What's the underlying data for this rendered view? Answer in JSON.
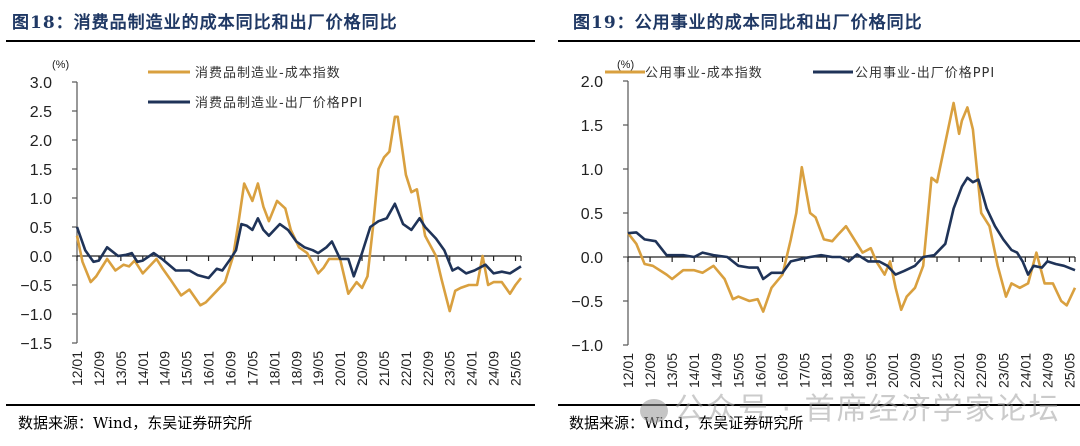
{
  "colors": {
    "cost": "#D9A03F",
    "ppi": "#1F3358",
    "title": "#1F3864",
    "axis": "#555555"
  },
  "panels": [
    {
      "title": "图18：消费品制造业的成本同比和出厂价格同比",
      "source": "数据来源：Wind，东吴证券研究所"
    },
    {
      "title": "图19：公用事业的成本同比和出厂价格同比",
      "source": "数据来源：Wind，东吴证券研究所"
    }
  ],
  "watermark": "公众号 · 首席经济学家论坛",
  "chart_data": [
    {
      "type": "line",
      "title": "消费品制造业的成本同比和出厂价格同比",
      "ylabel": "(%)",
      "xlabel": "",
      "ylim": [
        -1.5,
        3.0
      ],
      "yticks": [
        "3.0",
        "2.5",
        "2.0",
        "1.5",
        "1.0",
        "0.5",
        "0.0",
        "-0.5",
        "-1.0",
        "-1.5"
      ],
      "ytick_values": [
        3.0,
        2.5,
        2.0,
        1.5,
        1.0,
        0.5,
        0.0,
        -0.5,
        -1.0,
        -1.5
      ],
      "xticks": [
        "12/01",
        "12/09",
        "13/05",
        "14/01",
        "14/09",
        "15/05",
        "16/01",
        "16/09",
        "17/05",
        "18/01",
        "18/09",
        "19/05",
        "20/01",
        "20/09",
        "21/05",
        "22/01",
        "22/09",
        "23/05",
        "24/01",
        "24/09",
        "25/05"
      ],
      "x_range": [
        "2012/01",
        "2025/07"
      ],
      "legend": "top-center",
      "grid": false,
      "series": [
        {
          "name": "消费品制造业-成本指数",
          "color_key": "cost",
          "points": [
            [
              "2012/01",
              0.35
            ],
            [
              "2012/03",
              -0.1
            ],
            [
              "2012/06",
              -0.45
            ],
            [
              "2012/08",
              -0.35
            ],
            [
              "2012/12",
              -0.05
            ],
            [
              "2013/03",
              -0.25
            ],
            [
              "2013/06",
              -0.15
            ],
            [
              "2013/08",
              -0.18
            ],
            [
              "2013/10",
              -0.08
            ],
            [
              "2014/01",
              -0.3
            ],
            [
              "2014/06",
              -0.05
            ],
            [
              "2014/08",
              -0.2
            ],
            [
              "2014/11",
              -0.4
            ],
            [
              "2015/03",
              -0.68
            ],
            [
              "2015/06",
              -0.58
            ],
            [
              "2015/10",
              -0.85
            ],
            [
              "2015/12",
              -0.8
            ],
            [
              "2016/04",
              -0.6
            ],
            [
              "2016/07",
              -0.45
            ],
            [
              "2016/10",
              0.0
            ],
            [
              "2016/12",
              0.6
            ],
            [
              "2017/02",
              1.25
            ],
            [
              "2017/05",
              0.95
            ],
            [
              "2017/07",
              1.25
            ],
            [
              "2017/09",
              0.85
            ],
            [
              "2017/11",
              0.6
            ],
            [
              "2018/02",
              0.95
            ],
            [
              "2018/05",
              0.82
            ],
            [
              "2018/07",
              0.45
            ],
            [
              "2018/10",
              0.15
            ],
            [
              "2019/01",
              0.05
            ],
            [
              "2019/05",
              -0.3
            ],
            [
              "2019/07",
              -0.2
            ],
            [
              "2019/09",
              -0.05
            ],
            [
              "2020/01",
              -0.05
            ],
            [
              "2020/04",
              -0.65
            ],
            [
              "2020/07",
              -0.45
            ],
            [
              "2020/09",
              -0.55
            ],
            [
              "2020/11",
              -0.35
            ],
            [
              "2021/01",
              0.5
            ],
            [
              "2021/03",
              1.5
            ],
            [
              "2021/05",
              1.7
            ],
            [
              "2021/07",
              1.8
            ],
            [
              "2021/09",
              2.4
            ],
            [
              "2021/10",
              2.4
            ],
            [
              "2022/01",
              1.4
            ],
            [
              "2022/03",
              1.1
            ],
            [
              "2022/05",
              1.15
            ],
            [
              "2022/08",
              0.35
            ],
            [
              "2022/12",
              0.0
            ],
            [
              "2023/02",
              -0.4
            ],
            [
              "2023/05",
              -0.95
            ],
            [
              "2023/07",
              -0.6
            ],
            [
              "2023/09",
              -0.55
            ],
            [
              "2023/12",
              -0.5
            ],
            [
              "2024/03",
              -0.5
            ],
            [
              "2024/05",
              0.0
            ],
            [
              "2024/07",
              -0.5
            ],
            [
              "2024/09",
              -0.45
            ],
            [
              "2024/12",
              -0.45
            ],
            [
              "2025/03",
              -0.65
            ],
            [
              "2025/05",
              -0.5
            ],
            [
              "2025/07",
              -0.38
            ]
          ]
        },
        {
          "name": "消费品制造业-出厂价格PPI",
          "color_key": "ppi",
          "points": [
            [
              "2012/01",
              0.5
            ],
            [
              "2012/04",
              0.1
            ],
            [
              "2012/07",
              -0.1
            ],
            [
              "2012/09",
              -0.08
            ],
            [
              "2012/12",
              0.15
            ],
            [
              "2013/04",
              0.0
            ],
            [
              "2013/07",
              0.02
            ],
            [
              "2013/09",
              0.05
            ],
            [
              "2013/11",
              -0.1
            ],
            [
              "2014/01",
              -0.08
            ],
            [
              "2014/05",
              0.05
            ],
            [
              "2014/08",
              -0.05
            ],
            [
              "2015/01",
              -0.25
            ],
            [
              "2015/06",
              -0.25
            ],
            [
              "2015/09",
              -0.33
            ],
            [
              "2016/01",
              -0.38
            ],
            [
              "2016/04",
              -0.22
            ],
            [
              "2016/06",
              -0.25
            ],
            [
              "2016/09",
              -0.05
            ],
            [
              "2016/11",
              0.1
            ],
            [
              "2017/01",
              0.55
            ],
            [
              "2017/03",
              0.52
            ],
            [
              "2017/05",
              0.45
            ],
            [
              "2017/07",
              0.65
            ],
            [
              "2017/09",
              0.45
            ],
            [
              "2017/11",
              0.35
            ],
            [
              "2018/03",
              0.55
            ],
            [
              "2018/06",
              0.45
            ],
            [
              "2018/09",
              0.25
            ],
            [
              "2018/12",
              0.15
            ],
            [
              "2019/03",
              0.1
            ],
            [
              "2019/05",
              0.05
            ],
            [
              "2019/08",
              0.15
            ],
            [
              "2019/10",
              0.25
            ],
            [
              "2020/01",
              -0.05
            ],
            [
              "2020/04",
              -0.05
            ],
            [
              "2020/06",
              -0.35
            ],
            [
              "2020/09",
              0.05
            ],
            [
              "2020/12",
              0.5
            ],
            [
              "2021/03",
              0.6
            ],
            [
              "2021/06",
              0.65
            ],
            [
              "2021/09",
              0.9
            ],
            [
              "2021/12",
              0.55
            ],
            [
              "2022/03",
              0.45
            ],
            [
              "2022/06",
              0.65
            ],
            [
              "2022/08",
              0.5
            ],
            [
              "2022/12",
              0.3
            ],
            [
              "2023/03",
              0.1
            ],
            [
              "2023/06",
              -0.25
            ],
            [
              "2023/08",
              -0.2
            ],
            [
              "2023/11",
              -0.3
            ],
            [
              "2024/02",
              -0.25
            ],
            [
              "2024/06",
              -0.15
            ],
            [
              "2024/09",
              -0.3
            ],
            [
              "2024/12",
              -0.27
            ],
            [
              "2025/03",
              -0.3
            ],
            [
              "2025/07",
              -0.18
            ]
          ]
        }
      ]
    },
    {
      "type": "line",
      "title": "公用事业的成本同比和出厂价格同比",
      "ylabel": "(%)",
      "xlabel": "",
      "ylim": [
        -1.0,
        2.0
      ],
      "yticks": [
        "2.0",
        "1.5",
        "1.0",
        "0.5",
        "0.0",
        "-0.5",
        "-1.0"
      ],
      "ytick_values": [
        2.0,
        1.5,
        1.0,
        0.5,
        0.0,
        -0.5,
        -1.0
      ],
      "xticks": [
        "12/01",
        "12/09",
        "13/05",
        "14/01",
        "14/09",
        "15/05",
        "16/01",
        "16/09",
        "17/05",
        "18/01",
        "18/09",
        "19/05",
        "20/01",
        "20/09",
        "21/05",
        "22/01",
        "22/09",
        "23/05",
        "24/01",
        "24/09",
        "25/05"
      ],
      "x_range": [
        "2012/01",
        "2025/07"
      ],
      "legend": "top",
      "grid": false,
      "series": [
        {
          "name": "公用事业-成本指数",
          "color_key": "cost",
          "points": [
            [
              "2012/01",
              0.27
            ],
            [
              "2012/04",
              0.15
            ],
            [
              "2012/07",
              -0.08
            ],
            [
              "2012/10",
              -0.1
            ],
            [
              "2013/03",
              -0.2
            ],
            [
              "2013/05",
              -0.25
            ],
            [
              "2013/09",
              -0.15
            ],
            [
              "2014/01",
              -0.15
            ],
            [
              "2014/04",
              -0.18
            ],
            [
              "2014/08",
              -0.1
            ],
            [
              "2014/12",
              -0.25
            ],
            [
              "2015/03",
              -0.48
            ],
            [
              "2015/05",
              -0.45
            ],
            [
              "2015/09",
              -0.5
            ],
            [
              "2015/12",
              -0.48
            ],
            [
              "2016/02",
              -0.62
            ],
            [
              "2016/05",
              -0.35
            ],
            [
              "2016/09",
              -0.2
            ],
            [
              "2016/12",
              0.2
            ],
            [
              "2017/02",
              0.5
            ],
            [
              "2017/04",
              1.02
            ],
            [
              "2017/07",
              0.5
            ],
            [
              "2017/09",
              0.45
            ],
            [
              "2017/12",
              0.2
            ],
            [
              "2018/03",
              0.18
            ],
            [
              "2018/05",
              0.25
            ],
            [
              "2018/08",
              0.35
            ],
            [
              "2018/11",
              0.2
            ],
            [
              "2019/02",
              0.05
            ],
            [
              "2019/05",
              0.1
            ],
            [
              "2019/07",
              -0.05
            ],
            [
              "2019/10",
              -0.2
            ],
            [
              "2019/12",
              -0.05
            ],
            [
              "2020/02",
              -0.35
            ],
            [
              "2020/04",
              -0.6
            ],
            [
              "2020/06",
              -0.45
            ],
            [
              "2020/09",
              -0.35
            ],
            [
              "2020/12",
              -0.1
            ],
            [
              "2021/03",
              0.9
            ],
            [
              "2021/05",
              0.85
            ],
            [
              "2021/08",
              1.3
            ],
            [
              "2021/11",
              1.75
            ],
            [
              "2022/01",
              1.4
            ],
            [
              "2022/02",
              1.55
            ],
            [
              "2022/04",
              1.7
            ],
            [
              "2022/06",
              1.45
            ],
            [
              "2022/09",
              0.5
            ],
            [
              "2022/12",
              0.35
            ],
            [
              "2023/03",
              -0.1
            ],
            [
              "2023/06",
              -0.45
            ],
            [
              "2023/08",
              -0.3
            ],
            [
              "2023/11",
              -0.35
            ],
            [
              "2024/02",
              -0.3
            ],
            [
              "2024/05",
              0.05
            ],
            [
              "2024/08",
              -0.3
            ],
            [
              "2024/11",
              -0.3
            ],
            [
              "2025/02",
              -0.5
            ],
            [
              "2025/04",
              -0.55
            ],
            [
              "2025/07",
              -0.35
            ]
          ]
        },
        {
          "name": "公用事业-出厂价格PPI",
          "color_key": "ppi",
          "points": [
            [
              "2012/01",
              0.27
            ],
            [
              "2012/04",
              0.28
            ],
            [
              "2012/07",
              0.2
            ],
            [
              "2012/11",
              0.18
            ],
            [
              "2013/03",
              0.02
            ],
            [
              "2013/09",
              0.02
            ],
            [
              "2014/01",
              0.0
            ],
            [
              "2014/04",
              0.05
            ],
            [
              "2014/08",
              0.02
            ],
            [
              "2015/01",
              0.0
            ],
            [
              "2015/05",
              -0.1
            ],
            [
              "2015/09",
              -0.12
            ],
            [
              "2015/12",
              -0.12
            ],
            [
              "2016/02",
              -0.25
            ],
            [
              "2016/05",
              -0.18
            ],
            [
              "2016/09",
              -0.18
            ],
            [
              "2016/12",
              -0.05
            ],
            [
              "2017/04",
              -0.02
            ],
            [
              "2017/07",
              0.0
            ],
            [
              "2017/11",
              0.02
            ],
            [
              "2018/03",
              0.0
            ],
            [
              "2018/06",
              0.0
            ],
            [
              "2018/09",
              -0.05
            ],
            [
              "2018/12",
              0.03
            ],
            [
              "2019/04",
              -0.05
            ],
            [
              "2019/08",
              -0.05
            ],
            [
              "2019/11",
              -0.1
            ],
            [
              "2020/02",
              -0.2
            ],
            [
              "2020/05",
              -0.16
            ],
            [
              "2020/09",
              -0.1
            ],
            [
              "2020/12",
              0.0
            ],
            [
              "2021/04",
              0.02
            ],
            [
              "2021/08",
              0.15
            ],
            [
              "2021/11",
              0.55
            ],
            [
              "2022/02",
              0.8
            ],
            [
              "2022/04",
              0.9
            ],
            [
              "2022/06",
              0.85
            ],
            [
              "2022/08",
              0.88
            ],
            [
              "2022/11",
              0.55
            ],
            [
              "2023/02",
              0.35
            ],
            [
              "2023/05",
              0.2
            ],
            [
              "2023/08",
              0.08
            ],
            [
              "2023/10",
              0.05
            ],
            [
              "2023/12",
              -0.05
            ],
            [
              "2024/02",
              -0.2
            ],
            [
              "2024/04",
              -0.1
            ],
            [
              "2024/07",
              -0.12
            ],
            [
              "2024/09",
              -0.05
            ],
            [
              "2024/12",
              -0.08
            ],
            [
              "2025/03",
              -0.1
            ],
            [
              "2025/07",
              -0.15
            ]
          ]
        }
      ]
    }
  ]
}
